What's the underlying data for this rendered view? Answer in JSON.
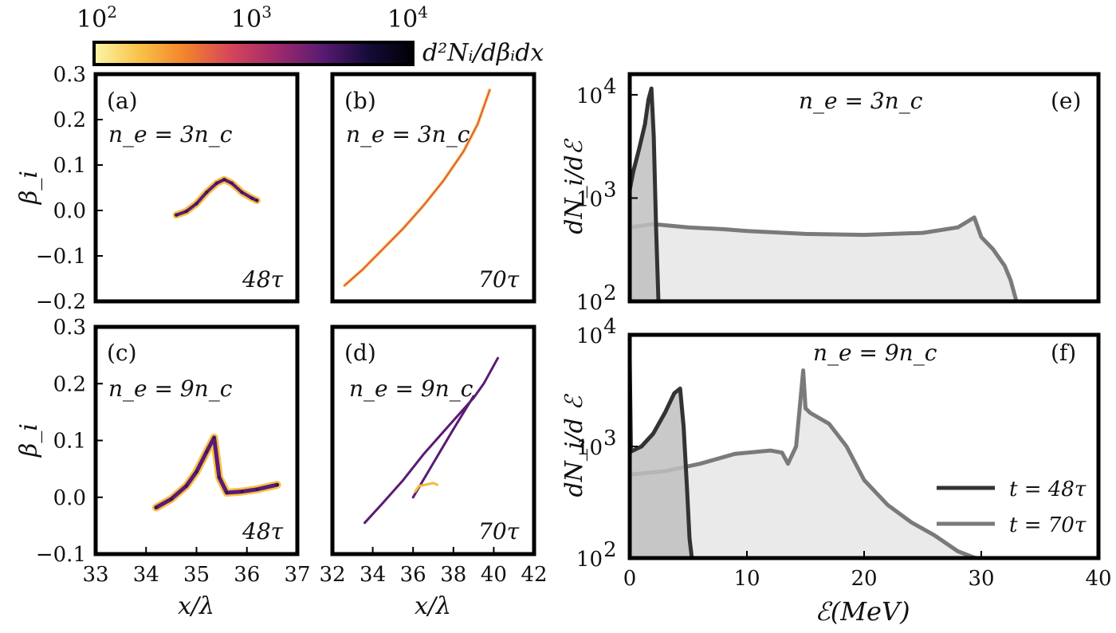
{
  "colorbar": {
    "tick_labels": [
      "10",
      "10",
      "10"
    ],
    "tick_exponents": [
      "2",
      "3",
      "4"
    ],
    "label": "d²Nᵢ/dβᵢdx",
    "colors": [
      "#fbf6a8",
      "#f8c248",
      "#f3832b",
      "#d6455a",
      "#a02a6b",
      "#5a1b72",
      "#160b3a",
      "#000004"
    ]
  },
  "chart_data": [
    {
      "panel": "a",
      "type": "scatter",
      "label": "(a)",
      "density": "n_e = 3n_c",
      "time": "48τ",
      "xlim": [
        33,
        37
      ],
      "ylim": [
        -0.2,
        0.3
      ],
      "yticks": [
        "0.3",
        "0.2",
        "0.1",
        "0.0",
        "−0.1",
        "−0.2"
      ],
      "ytick_values": [
        0.3,
        0.2,
        0.1,
        0.0,
        -0.1,
        -0.2
      ],
      "xticks": [],
      "ylabel": "β_i",
      "xlabel": "",
      "x": [
        34.6,
        34.8,
        35.0,
        35.2,
        35.4,
        35.55,
        35.7,
        35.9,
        36.1,
        36.2
      ],
      "y": [
        -0.01,
        -0.002,
        0.015,
        0.04,
        0.06,
        0.068,
        0.06,
        0.04,
        0.027,
        0.022
      ]
    },
    {
      "panel": "b",
      "type": "scatter",
      "label": "(b)",
      "density": "n_e = 3n_c",
      "time": "70τ",
      "xlim": [
        32,
        42
      ],
      "ylim": [
        -0.2,
        0.3
      ],
      "yticks": [],
      "xticks": [],
      "x": [
        32.6,
        33.5,
        34.5,
        35.5,
        36.5,
        37.5,
        38.5,
        39.2,
        39.8
      ],
      "y": [
        -0.165,
        -0.13,
        -0.085,
        -0.04,
        0.01,
        0.065,
        0.13,
        0.19,
        0.265
      ]
    },
    {
      "panel": "c",
      "type": "scatter",
      "label": "(c)",
      "density": "n_e = 9n_c",
      "time": "48τ",
      "xlim": [
        33,
        37
      ],
      "ylim": [
        -0.1,
        0.3
      ],
      "yticks": [
        "0.3",
        "0.2",
        "0.1",
        "0.0",
        "−0.1"
      ],
      "ytick_values": [
        0.3,
        0.2,
        0.1,
        0.0,
        -0.1
      ],
      "xticks": [
        "33",
        "34",
        "35",
        "36",
        "37"
      ],
      "xtick_values": [
        33,
        34,
        35,
        36,
        37
      ],
      "ylabel": "β_i",
      "xlabel": "x/λ",
      "x": [
        34.2,
        34.5,
        34.8,
        35.0,
        35.2,
        35.35,
        35.45,
        35.6,
        35.9,
        36.2,
        36.6
      ],
      "y": [
        -0.018,
        -0.003,
        0.02,
        0.045,
        0.08,
        0.105,
        0.035,
        0.008,
        0.01,
        0.014,
        0.022
      ]
    },
    {
      "panel": "d",
      "type": "scatter",
      "label": "(d)",
      "density": "n_e = 9n_c",
      "time": "70τ",
      "xlim": [
        32,
        42
      ],
      "ylim": [
        -0.1,
        0.3
      ],
      "yticks": [],
      "xticks": [
        "32",
        "34",
        "36",
        "38",
        "40",
        "42"
      ],
      "xtick_values": [
        32,
        34,
        36,
        38,
        40,
        42
      ],
      "xlabel": "x/λ",
      "x": [
        33.6,
        34.5,
        35.5,
        36.5,
        37.5,
        38.5,
        39.0,
        39.5,
        40.2
      ],
      "y": [
        -0.045,
        -0.01,
        0.03,
        0.075,
        0.115,
        0.155,
        0.175,
        0.2,
        0.245
      ],
      "branch_x": [
        36.0,
        37.0,
        38.0,
        39.0
      ],
      "branch_y": [
        0.0,
        0.06,
        0.12,
        0.178
      ],
      "loop_x": [
        36.1,
        36.3,
        36.6,
        37.0,
        37.2
      ],
      "loop_y": [
        0.01,
        0.02,
        0.022,
        0.025,
        0.022
      ]
    },
    {
      "panel": "e",
      "type": "area",
      "label": "(e)",
      "density": "n_e = 3n_c",
      "xlim": [
        0,
        40
      ],
      "ylim_log10": [
        2,
        4.2
      ],
      "log_y": true,
      "yticks": [
        "10",
        "10",
        "10"
      ],
      "ytick_exponents": [
        "4",
        "3",
        "2"
      ],
      "ytick_values": [
        10000,
        1000,
        100
      ],
      "xticks": [],
      "ylabel": "dN_i/dℰ",
      "series": [
        {
          "name": "t = 48τ",
          "color": "#333333",
          "fill": "#c0c0c0",
          "x": [
            0,
            0.3,
            0.8,
            1.3,
            1.6,
            1.85,
            2.05,
            2.25,
            2.45
          ],
          "y": [
            1200,
            1800,
            3000,
            5200,
            9000,
            11500,
            4000,
            500,
            100
          ]
        },
        {
          "name": "t = 70τ",
          "color": "#7a7a7a",
          "fill": "#e6e6e6",
          "x": [
            0,
            2,
            5,
            8,
            10,
            15,
            20,
            25,
            28,
            29.4,
            30,
            31,
            32,
            32.5,
            33
          ],
          "y": [
            520,
            560,
            520,
            500,
            480,
            450,
            440,
            460,
            520,
            650,
            420,
            320,
            220,
            160,
            100
          ]
        }
      ]
    },
    {
      "panel": "f",
      "type": "area",
      "label": "(f)",
      "density": "n_e = 9n_c",
      "xlim": [
        0,
        40
      ],
      "ylim_log10": [
        2,
        4
      ],
      "log_y": true,
      "yticks": [
        "10",
        "10",
        "10"
      ],
      "ytick_exponents": [
        "4",
        "3",
        "2"
      ],
      "ytick_values": [
        10000,
        1000,
        100
      ],
      "xticks": [
        "0",
        "10",
        "20",
        "30",
        "40"
      ],
      "xtick_values": [
        0,
        10,
        20,
        30,
        40
      ],
      "ylabel": "dN_i/d ℰ",
      "xlabel": "ℰ(MeV)",
      "series": [
        {
          "name": "t = 48τ",
          "color": "#333333",
          "fill": "#c0c0c0",
          "x": [
            0,
            0.1,
            1,
            2,
            3,
            3.8,
            4.3,
            4.6,
            4.9,
            5.1,
            5.3
          ],
          "y": [
            6000,
            900,
            1000,
            1300,
            2000,
            3000,
            3300,
            1500,
            400,
            150,
            100
          ]
        },
        {
          "name": "t = 70τ",
          "color": "#7a7a7a",
          "fill": "#e6e6e6",
          "x": [
            0,
            3,
            6,
            9,
            12,
            13,
            13.5,
            14.2,
            14.8,
            15.0,
            15.4,
            17,
            18.5,
            20,
            22,
            24,
            26,
            28,
            29.5
          ],
          "y": [
            560,
            600,
            700,
            860,
            920,
            880,
            700,
            1000,
            4800,
            2200,
            2000,
            1600,
            1000,
            500,
            300,
            210,
            160,
            115,
            100
          ]
        }
      ],
      "legend": [
        "t = 48τ",
        "t = 70τ"
      ]
    }
  ]
}
